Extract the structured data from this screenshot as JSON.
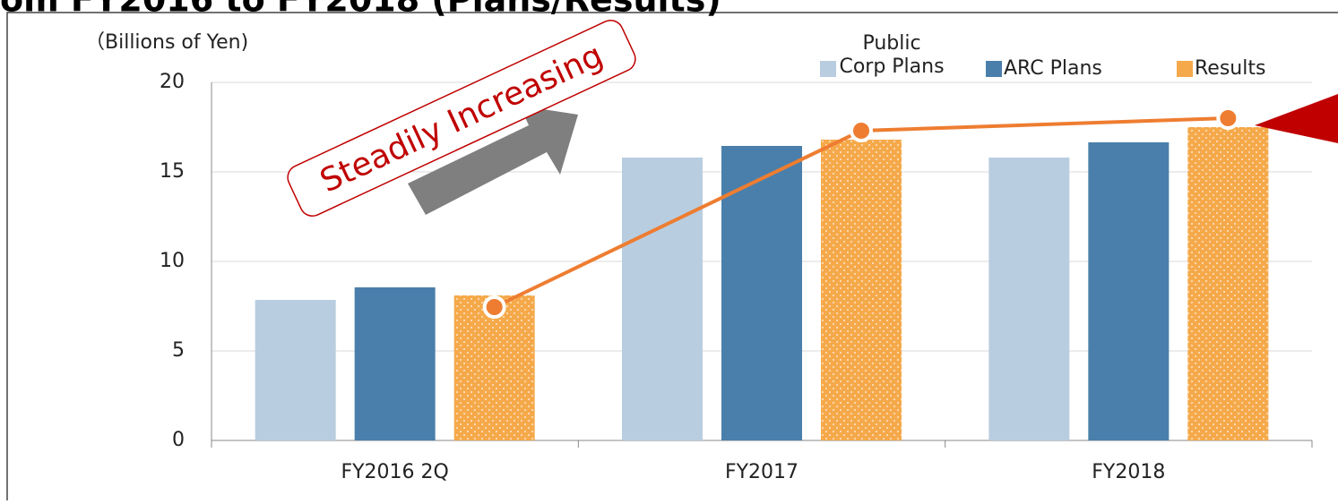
{
  "chart_data": {
    "type": "bar",
    "title": "om FY2016 to FY2018 (Plans/Results)",
    "y_label": "（Billions of Yen)",
    "annotation": "Steadily Increasing",
    "categories": [
      "FY2016 2Q",
      "FY2017",
      "FY2018"
    ],
    "series": [
      {
        "name": "Public Corp Plans",
        "color": "#b9cde0",
        "values": [
          7.85,
          15.8,
          15.8
        ]
      },
      {
        "name": "ARC Plans",
        "color": "#4a7fab",
        "values": [
          8.55,
          16.45,
          16.65
        ]
      },
      {
        "name": "Results",
        "color": "#f5a94a",
        "values": [
          8.1,
          16.8,
          17.5
        ]
      }
    ],
    "trend": {
      "color": "#ee7d31",
      "values": [
        7.45,
        17.3,
        18.0
      ]
    },
    "ylim": [
      0,
      20
    ],
    "yticks": [
      0,
      5,
      10,
      15,
      20
    ],
    "grid": true
  }
}
